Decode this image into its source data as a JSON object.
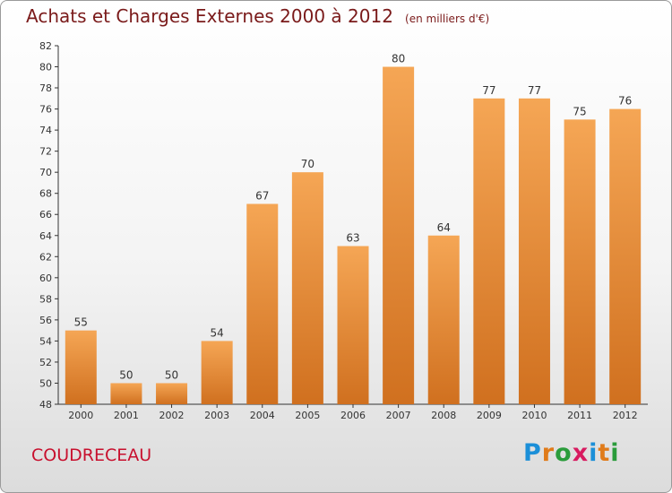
{
  "header": {
    "title": "Achats et Charges Externes 2000 à 2012",
    "subtitle": "(en milliers d'€)"
  },
  "footer": {
    "commune": "COUDRECEAU",
    "logo_text": "Proxiti"
  },
  "colors": {
    "title": "#7a1a1a",
    "commune": "#c8102e",
    "bar_top": "#f5a655",
    "bar_bottom": "#d0701f",
    "logo": [
      "#1b8fd8",
      "#e07b1a",
      "#2a9c3b",
      "#d81b60",
      "#1b8fd8",
      "#e07b1a",
      "#2a9c3b"
    ]
  },
  "chart_data": {
    "type": "bar",
    "title": "Achats et Charges Externes 2000 à 2012",
    "xlabel": "",
    "ylabel": "",
    "categories": [
      "2000",
      "2001",
      "2002",
      "2003",
      "2004",
      "2005",
      "2006",
      "2007",
      "2008",
      "2009",
      "2010",
      "2011",
      "2012"
    ],
    "values": [
      55,
      50,
      50,
      54,
      67,
      70,
      63,
      80,
      64,
      77,
      77,
      75,
      76
    ],
    "ylim": [
      48,
      82
    ],
    "yticks": [
      48,
      50,
      52,
      54,
      56,
      58,
      60,
      62,
      64,
      66,
      68,
      70,
      72,
      74,
      76,
      78,
      80,
      82
    ],
    "grid": false,
    "data_labels": true
  }
}
